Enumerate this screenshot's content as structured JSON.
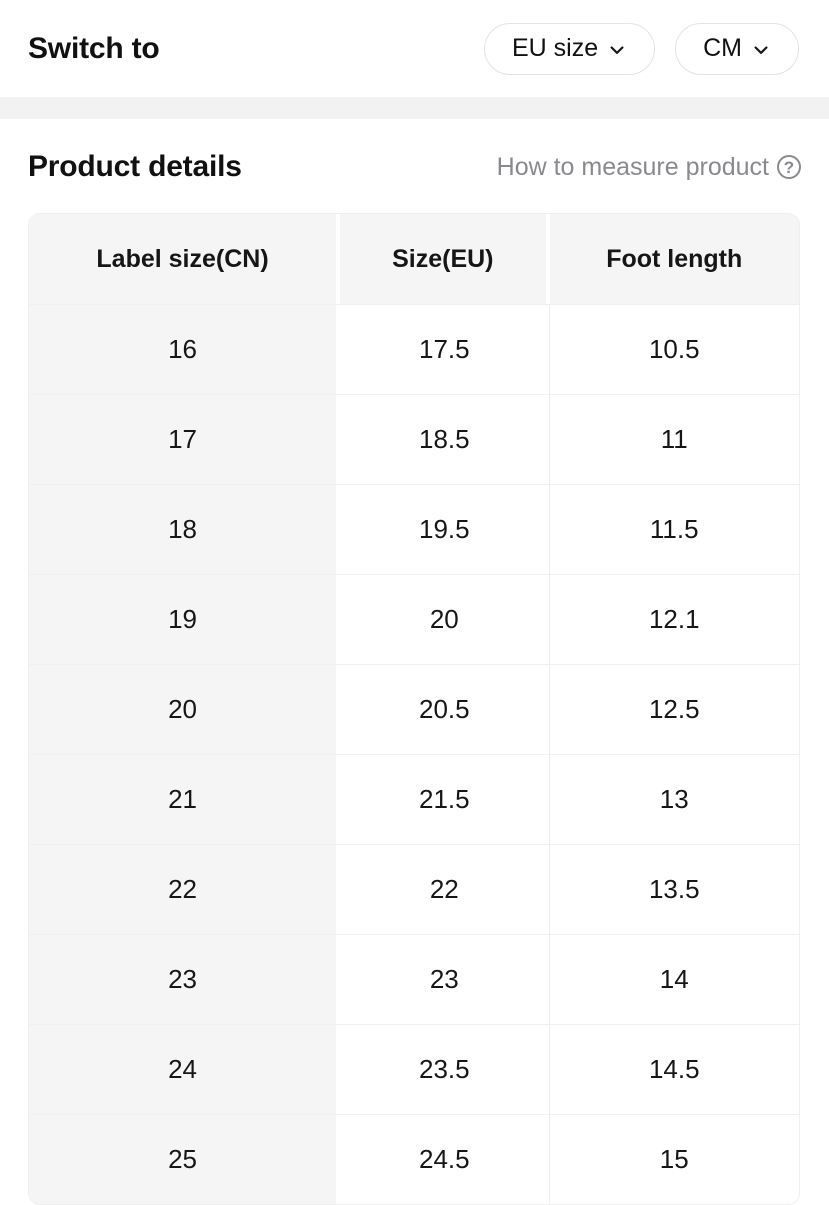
{
  "topbar": {
    "label": "Switch to",
    "buttons": [
      {
        "label": "EU size",
        "icon": "chevron-down-icon"
      },
      {
        "label": "CM",
        "icon": "chevron-down-icon"
      }
    ]
  },
  "section": {
    "title": "Product details",
    "help_link": "How to measure product",
    "help_icon": "question-circle-icon",
    "help_icon_glyph": "?"
  },
  "table": {
    "columns": [
      "Label size(CN)",
      "Size(EU)",
      "Foot length"
    ],
    "rows": [
      [
        "16",
        "17.5",
        "10.5"
      ],
      [
        "17",
        "18.5",
        "11"
      ],
      [
        "18",
        "19.5",
        "11.5"
      ],
      [
        "19",
        "20",
        "12.1"
      ],
      [
        "20",
        "20.5",
        "12.5"
      ],
      [
        "21",
        "21.5",
        "13"
      ],
      [
        "22",
        "22",
        "13.5"
      ],
      [
        "23",
        "23",
        "14"
      ],
      [
        "24",
        "23.5",
        "14.5"
      ],
      [
        "25",
        "24.5",
        "15"
      ]
    ]
  },
  "colors": {
    "background": "#ffffff",
    "divider_band": "#f2f2f3",
    "table_header_bg": "#f5f5f6",
    "table_border": "#efefef",
    "row_separator": "#f0f0f0",
    "pill_border": "#e3e3e5",
    "muted_text": "#8a8a8e",
    "text": "#111111"
  }
}
